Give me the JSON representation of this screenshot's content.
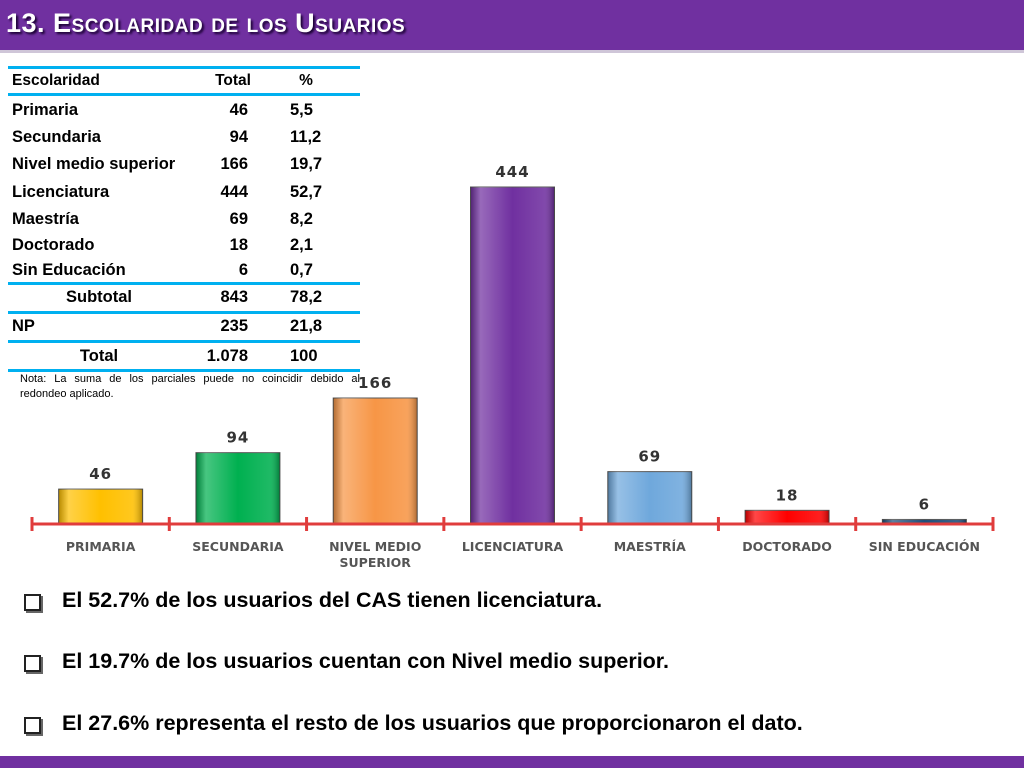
{
  "title": "13. Escolaridad de los Usuarios",
  "table": {
    "headers": [
      "Escolaridad",
      "Total",
      "%"
    ],
    "rows": [
      {
        "label": "Primaria",
        "total": "46",
        "pct": "5,5"
      },
      {
        "label": "Secundaria",
        "total": "94",
        "pct": "11,2"
      },
      {
        "label": "Nivel medio superior",
        "total": "166",
        "pct": "19,7"
      },
      {
        "label": "Licenciatura",
        "total": "444",
        "pct": "52,7"
      },
      {
        "label": "Maestría",
        "total": "69",
        "pct": "8,2"
      },
      {
        "label": "Doctorado",
        "total": "18",
        "pct": "2,1"
      },
      {
        "label": "Sin Educación",
        "total": "6",
        "pct": "0,7"
      }
    ],
    "subtotal": {
      "label": "Subtotal",
      "total": "843",
      "pct": "78,2"
    },
    "np": {
      "label": "NP",
      "total": "235",
      "pct": "21,8"
    },
    "total": {
      "label": "Total",
      "total": "1.078",
      "pct": "100"
    },
    "note": "Nota: La suma de los parciales puede no coincidir debido al redondeo aplicado.",
    "rule_color": "#00b0f0"
  },
  "chart_data": {
    "type": "bar",
    "categories": [
      "PRIMARIA",
      "SECUNDARIA",
      "NIVEL MEDIO SUPERIOR",
      "LICENCIATURA",
      "MAESTRÍA",
      "DOCTORADO",
      "SIN EDUCACIÓN"
    ],
    "category_lines": [
      [
        "PRIMARIA"
      ],
      [
        "SECUNDARIA"
      ],
      [
        "NIVEL MEDIO",
        "SUPERIOR"
      ],
      [
        "LICENCIATURA"
      ],
      [
        "MAESTRÍA"
      ],
      [
        "DOCTORADO"
      ],
      [
        "SIN EDUCACIÓN"
      ]
    ],
    "values": [
      46,
      94,
      166,
      444,
      69,
      18,
      6
    ],
    "data_labels": [
      "46",
      "94",
      "166",
      "444",
      "69",
      "18",
      "6"
    ],
    "colors": [
      "#ffc000",
      "#00b050",
      "#f79646",
      "#7030a0",
      "#6fa8dc",
      "#ff0000",
      "#1f4e79"
    ],
    "axis_color": "#e03c3c",
    "title": "",
    "xlabel": "",
    "ylabel": "",
    "ylim": [
      0,
      444
    ],
    "grid": false,
    "legend": "none"
  },
  "bullets": [
    "El 52.7% de los usuarios del CAS tienen licenciatura.",
    "El 19.7% de los usuarios cuentan con Nivel medio superior.",
    "El  27.6% representa el resto de los usuarios que proporcionaron el dato."
  ],
  "theme": {
    "title_bar": "#7030a0"
  }
}
